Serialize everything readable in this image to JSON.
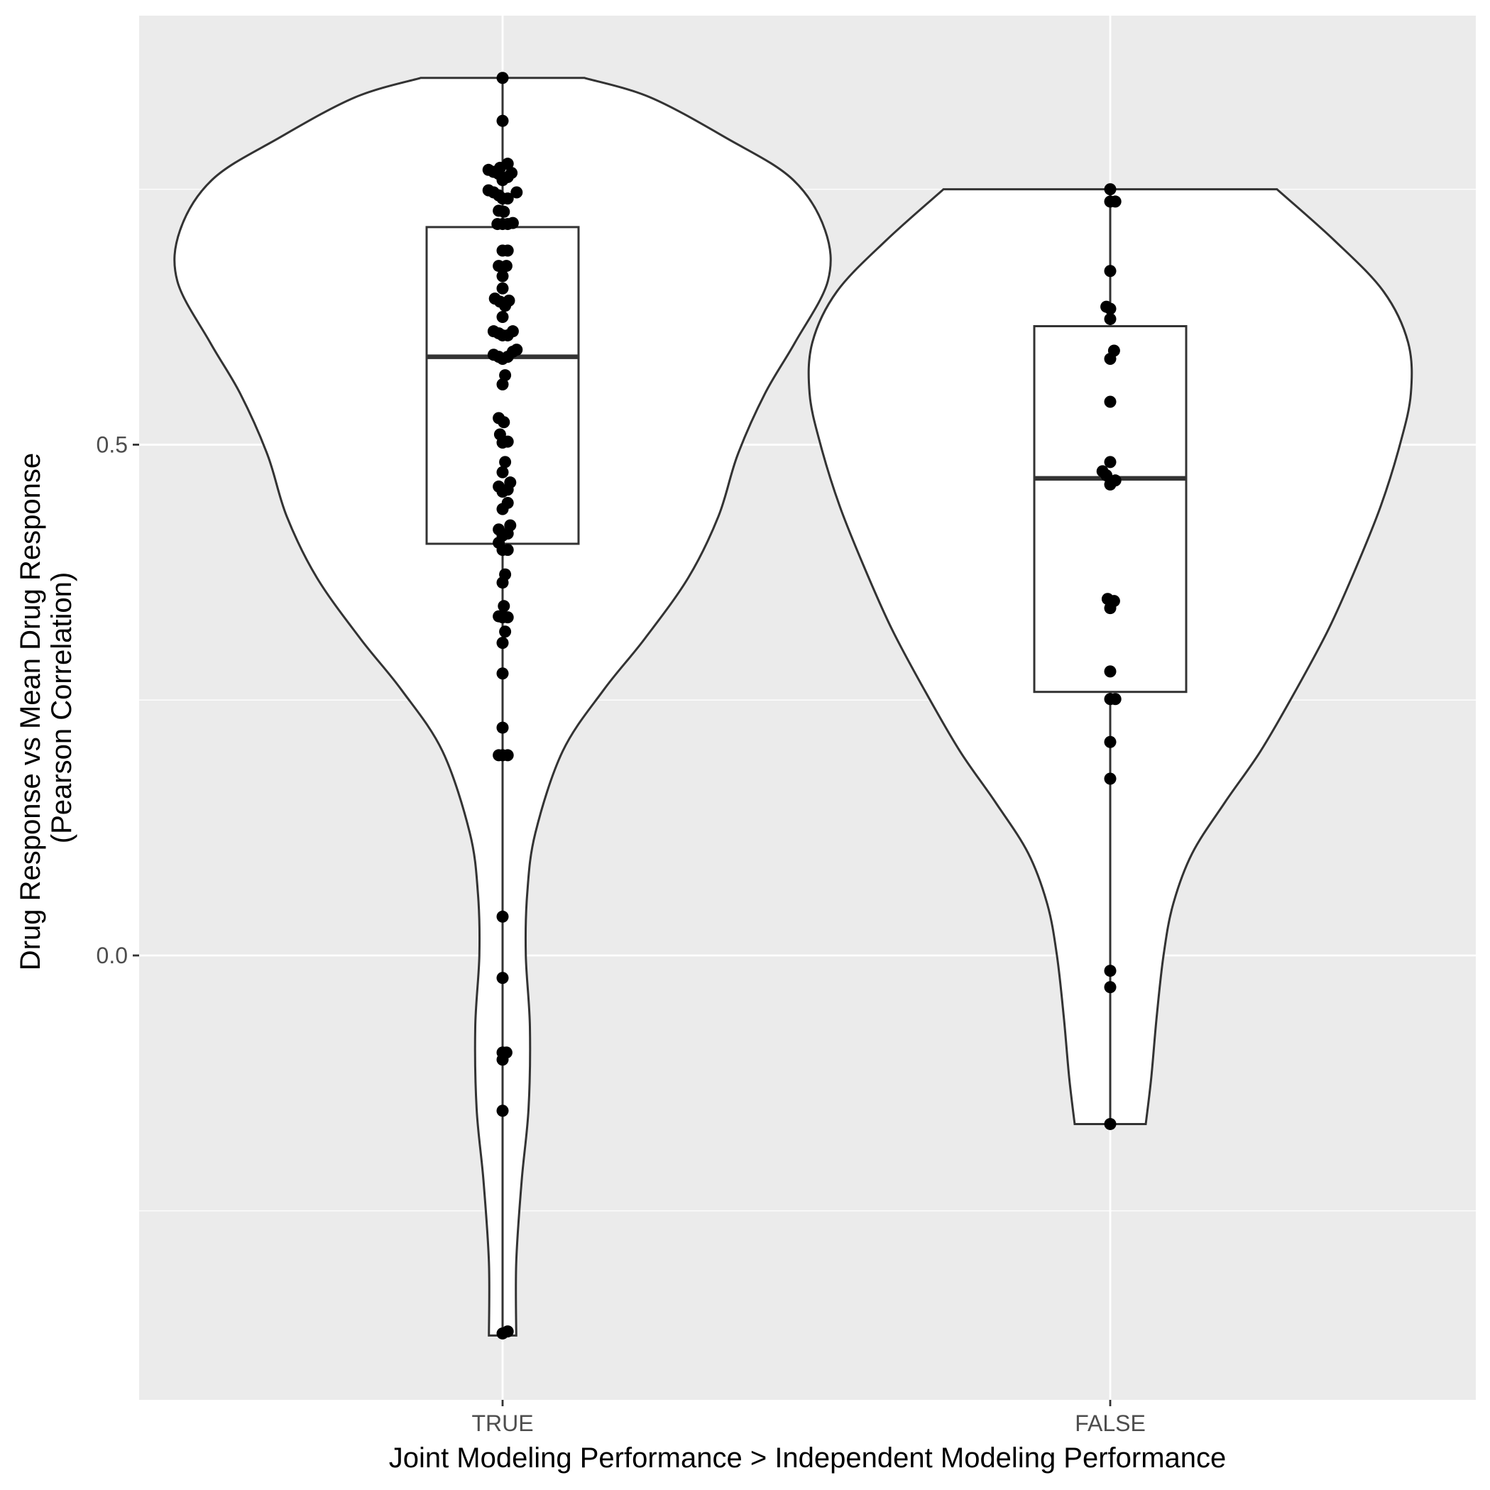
{
  "chart_data": {
    "type": "violin",
    "xlabel": "Joint Modeling Performance > Independent Modeling Performance",
    "ylabel_lines": [
      "Drug Response vs Mean Drug Response",
      "(Pearson Correlation)"
    ],
    "categories": [
      "TRUE",
      "FALSE"
    ],
    "y_ticks": [
      0.0,
      0.5
    ],
    "y_tick_labels": [
      "0.0",
      "0.5"
    ],
    "ylim": [
      -0.435,
      0.92
    ],
    "grid": true,
    "colors": {
      "panel_background": "#EBEBEB",
      "grid": "#FFFFFF",
      "violin_fill": "#FFFFFF",
      "outline": "#333333",
      "points": "#000000"
    },
    "groups": [
      {
        "category": "TRUE",
        "box": {
          "q1": 0.403,
          "median": 0.586,
          "q3": 0.713,
          "whisker_low": -0.37,
          "whisker_high": 0.859
        },
        "violin_profile": [
          {
            "y": -0.372,
            "hw": 0.05
          },
          {
            "y": -0.3,
            "hw": 0.05
          },
          {
            "y": -0.22,
            "hw": 0.07
          },
          {
            "y": -0.15,
            "hw": 0.095
          },
          {
            "y": -0.07,
            "hw": 0.1
          },
          {
            "y": 0.0,
            "hw": 0.085
          },
          {
            "y": 0.06,
            "hw": 0.09
          },
          {
            "y": 0.12,
            "hw": 0.12
          },
          {
            "y": 0.2,
            "hw": 0.22
          },
          {
            "y": 0.26,
            "hw": 0.37
          },
          {
            "y": 0.31,
            "hw": 0.52
          },
          {
            "y": 0.37,
            "hw": 0.68
          },
          {
            "y": 0.43,
            "hw": 0.79
          },
          {
            "y": 0.49,
            "hw": 0.86
          },
          {
            "y": 0.55,
            "hw": 0.96
          },
          {
            "y": 0.6,
            "hw": 1.07
          },
          {
            "y": 0.66,
            "hw": 1.19
          },
          {
            "y": 0.71,
            "hw": 1.18
          },
          {
            "y": 0.76,
            "hw": 1.06
          },
          {
            "y": 0.8,
            "hw": 0.82
          },
          {
            "y": 0.84,
            "hw": 0.54
          },
          {
            "y": 0.859,
            "hw": 0.3
          }
        ],
        "points": [
          {
            "x": 0.0,
            "y": 0.859
          },
          {
            "x": 0.0,
            "y": 0.817
          },
          {
            "x": 0.04,
            "y": 0.775
          },
          {
            "x": -0.02,
            "y": 0.771
          },
          {
            "x": 0.07,
            "y": 0.766
          },
          {
            "x": -0.11,
            "y": 0.769
          },
          {
            "x": -0.07,
            "y": 0.767
          },
          {
            "x": -0.03,
            "y": 0.765
          },
          {
            "x": 0.04,
            "y": 0.762
          },
          {
            "x": 0.0,
            "y": 0.759
          },
          {
            "x": -0.11,
            "y": 0.749
          },
          {
            "x": -0.07,
            "y": 0.747
          },
          {
            "x": 0.11,
            "y": 0.747
          },
          {
            "x": -0.03,
            "y": 0.744
          },
          {
            "x": 0.04,
            "y": 0.741
          },
          {
            "x": 0.0,
            "y": 0.741
          },
          {
            "x": -0.03,
            "y": 0.729
          },
          {
            "x": 0.01,
            "y": 0.728
          },
          {
            "x": -0.04,
            "y": 0.716
          },
          {
            "x": 0.0,
            "y": 0.716
          },
          {
            "x": 0.04,
            "y": 0.716
          },
          {
            "x": 0.08,
            "y": 0.717
          },
          {
            "x": 0.04,
            "y": 0.69
          },
          {
            "x": 0.0,
            "y": 0.69
          },
          {
            "x": -0.03,
            "y": 0.675
          },
          {
            "x": 0.03,
            "y": 0.675
          },
          {
            "x": 0.0,
            "y": 0.665
          },
          {
            "x": 0.0,
            "y": 0.653
          },
          {
            "x": -0.06,
            "y": 0.643
          },
          {
            "x": -0.02,
            "y": 0.64
          },
          {
            "x": 0.05,
            "y": 0.641
          },
          {
            "x": 0.02,
            "y": 0.636
          },
          {
            "x": 0.0,
            "y": 0.625
          },
          {
            "x": -0.07,
            "y": 0.611
          },
          {
            "x": -0.03,
            "y": 0.609
          },
          {
            "x": 0.0,
            "y": 0.607
          },
          {
            "x": 0.04,
            "y": 0.607
          },
          {
            "x": 0.08,
            "y": 0.611
          },
          {
            "x": 0.08,
            "y": 0.591
          },
          {
            "x": 0.11,
            "y": 0.593
          },
          {
            "x": -0.07,
            "y": 0.588
          },
          {
            "x": -0.03,
            "y": 0.586
          },
          {
            "x": 0.0,
            "y": 0.584
          },
          {
            "x": 0.04,
            "y": 0.586
          },
          {
            "x": 0.02,
            "y": 0.568
          },
          {
            "x": 0.0,
            "y": 0.559
          },
          {
            "x": -0.03,
            "y": 0.526
          },
          {
            "x": 0.01,
            "y": 0.522
          },
          {
            "x": -0.02,
            "y": 0.51
          },
          {
            "x": 0.0,
            "y": 0.502
          },
          {
            "x": 0.04,
            "y": 0.503
          },
          {
            "x": 0.02,
            "y": 0.483
          },
          {
            "x": 0.0,
            "y": 0.473
          },
          {
            "x": 0.06,
            "y": 0.463
          },
          {
            "x": -0.03,
            "y": 0.459
          },
          {
            "x": 0.0,
            "y": 0.454
          },
          {
            "x": 0.04,
            "y": 0.456
          },
          {
            "x": 0.04,
            "y": 0.443
          },
          {
            "x": 0.0,
            "y": 0.437
          },
          {
            "x": 0.06,
            "y": 0.421
          },
          {
            "x": -0.03,
            "y": 0.417
          },
          {
            "x": 0.0,
            "y": 0.411
          },
          {
            "x": 0.04,
            "y": 0.413
          },
          {
            "x": -0.03,
            "y": 0.404
          },
          {
            "x": 0.0,
            "y": 0.397
          },
          {
            "x": 0.04,
            "y": 0.397
          },
          {
            "x": 0.02,
            "y": 0.373
          },
          {
            "x": 0.0,
            "y": 0.365
          },
          {
            "x": 0.01,
            "y": 0.342
          },
          {
            "x": -0.03,
            "y": 0.332
          },
          {
            "x": 0.0,
            "y": 0.331
          },
          {
            "x": 0.04,
            "y": 0.331
          },
          {
            "x": 0.02,
            "y": 0.317
          },
          {
            "x": 0.0,
            "y": 0.306
          },
          {
            "x": 0.0,
            "y": 0.276
          },
          {
            "x": 0.0,
            "y": 0.223
          },
          {
            "x": -0.03,
            "y": 0.196
          },
          {
            "x": 0.0,
            "y": 0.196
          },
          {
            "x": 0.04,
            "y": 0.196
          },
          {
            "x": 0.0,
            "y": 0.038
          },
          {
            "x": 0.0,
            "y": -0.022
          },
          {
            "x": 0.0,
            "y": -0.095
          },
          {
            "x": 0.03,
            "y": -0.095
          },
          {
            "x": 0.0,
            "y": -0.102
          },
          {
            "x": 0.0,
            "y": -0.152
          },
          {
            "x": 0.0,
            "y": -0.37
          },
          {
            "x": 0.04,
            "y": -0.368
          }
        ]
      },
      {
        "category": "FALSE",
        "box": {
          "q1": 0.258,
          "median": 0.467,
          "q3": 0.616,
          "whisker_low": -0.165,
          "whisker_high": 0.75
        },
        "violin_profile": [
          {
            "y": -0.165,
            "hw": 0.13
          },
          {
            "y": -0.12,
            "hw": 0.15
          },
          {
            "y": -0.06,
            "hw": 0.17
          },
          {
            "y": 0.0,
            "hw": 0.195
          },
          {
            "y": 0.05,
            "hw": 0.23
          },
          {
            "y": 0.1,
            "hw": 0.3
          },
          {
            "y": 0.15,
            "hw": 0.42
          },
          {
            "y": 0.2,
            "hw": 0.55
          },
          {
            "y": 0.26,
            "hw": 0.68
          },
          {
            "y": 0.32,
            "hw": 0.8
          },
          {
            "y": 0.38,
            "hw": 0.9
          },
          {
            "y": 0.44,
            "hw": 0.99
          },
          {
            "y": 0.5,
            "hw": 1.06
          },
          {
            "y": 0.55,
            "hw": 1.1
          },
          {
            "y": 0.6,
            "hw": 1.09
          },
          {
            "y": 0.65,
            "hw": 1.0
          },
          {
            "y": 0.7,
            "hw": 0.82
          },
          {
            "y": 0.75,
            "hw": 0.61
          }
        ],
        "points": [
          {
            "x": 0.0,
            "y": 0.75
          },
          {
            "x": 0.04,
            "y": 0.738
          },
          {
            "x": 0.0,
            "y": 0.738
          },
          {
            "x": 0.0,
            "y": 0.67
          },
          {
            "x": -0.03,
            "y": 0.635
          },
          {
            "x": 0.0,
            "y": 0.633
          },
          {
            "x": 0.0,
            "y": 0.623
          },
          {
            "x": 0.03,
            "y": 0.592
          },
          {
            "x": 0.0,
            "y": 0.584
          },
          {
            "x": 0.0,
            "y": 0.542
          },
          {
            "x": 0.0,
            "y": 0.483
          },
          {
            "x": -0.06,
            "y": 0.474
          },
          {
            "x": -0.03,
            "y": 0.47
          },
          {
            "x": 0.04,
            "y": 0.465
          },
          {
            "x": 0.0,
            "y": 0.461
          },
          {
            "x": -0.02,
            "y": 0.349
          },
          {
            "x": 0.03,
            "y": 0.347
          },
          {
            "x": 0.0,
            "y": 0.34
          },
          {
            "x": 0.0,
            "y": 0.278
          },
          {
            "x": 0.0,
            "y": 0.251
          },
          {
            "x": 0.04,
            "y": 0.251
          },
          {
            "x": 0.0,
            "y": 0.209
          },
          {
            "x": 0.0,
            "y": 0.173
          },
          {
            "x": 0.0,
            "y": -0.015
          },
          {
            "x": 0.0,
            "y": -0.031
          },
          {
            "x": 0.0,
            "y": -0.165
          }
        ]
      }
    ]
  }
}
